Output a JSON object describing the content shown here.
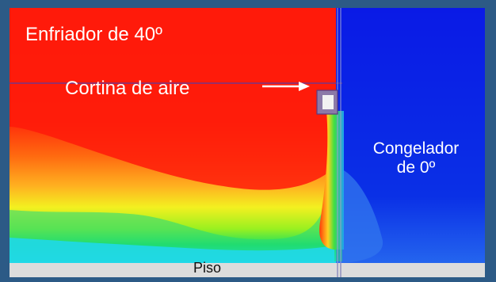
{
  "labels": {
    "cooler": "Enfriador de 40º",
    "air_curtain": "Cortina de aire",
    "freezer_line1": "Congelador",
    "freezer_line2": "de 0º",
    "floor": "Piso"
  },
  "colors": {
    "background": "#2c5a86",
    "warm": "#ff1a0a",
    "cold": "#0a1ae0",
    "floor": "#dcdcdc"
  }
}
